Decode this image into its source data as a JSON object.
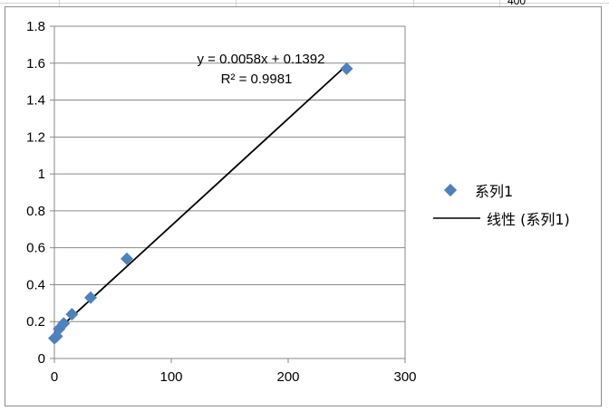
{
  "sheet": {
    "partial_cell_text": "400"
  },
  "chart_data": {
    "type": "scatter",
    "title": "",
    "xlabel": "",
    "ylabel": "",
    "xlim": [
      0,
      300
    ],
    "ylim": [
      0,
      1.8
    ],
    "x_ticks": [
      "0",
      "100",
      "200",
      "300"
    ],
    "y_ticks": [
      "0",
      "0.2",
      "0.4",
      "0.6",
      "0.8",
      "1",
      "1.2",
      "1.4",
      "1.6",
      "1.8"
    ],
    "grid": "horizontal",
    "legend_position": "right",
    "series": [
      {
        "name": "系列1",
        "marker": "diamond",
        "color": "#4f81bd",
        "points": [
          {
            "x": 0,
            "y": 0.11
          },
          {
            "x": 2,
            "y": 0.12
          },
          {
            "x": 4,
            "y": 0.16
          },
          {
            "x": 8,
            "y": 0.19
          },
          {
            "x": 15,
            "y": 0.24
          },
          {
            "x": 31,
            "y": 0.33
          },
          {
            "x": 62,
            "y": 0.54
          },
          {
            "x": 250,
            "y": 1.57
          }
        ]
      }
    ],
    "trendline": {
      "name": "线性 (系列1)",
      "type": "linear",
      "slope": 0.0058,
      "intercept": 0.1392,
      "x_range": [
        0,
        250
      ],
      "color": "#000000"
    },
    "annotations": {
      "equation": "y = 0.0058x + 0.1392",
      "r_squared": "R² = 0.9981"
    }
  }
}
